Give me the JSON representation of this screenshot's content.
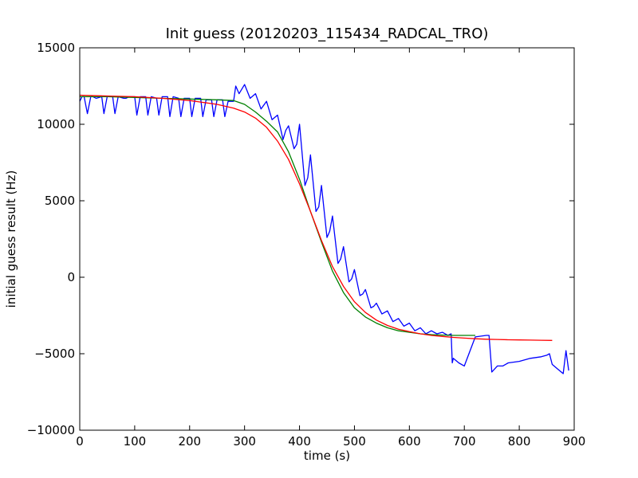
{
  "chart_data": {
    "type": "line",
    "title": "Init guess (20120203_115434_RADCAL_TRO)",
    "xlabel": "time (s)",
    "ylabel": "initial guess result (Hz)",
    "xlim": [
      0,
      900
    ],
    "ylim": [
      -10000,
      15000
    ],
    "xticks": [
      0,
      100,
      200,
      300,
      400,
      500,
      600,
      700,
      800,
      900
    ],
    "yticks": [
      -10000,
      -5000,
      0,
      5000,
      10000,
      15000
    ],
    "xtick_labels": [
      "0",
      "100",
      "200",
      "300",
      "400",
      "500",
      "600",
      "700",
      "800",
      "900"
    ],
    "ytick_labels": [
      "−10000",
      "−5000",
      "0",
      "5000",
      "10000",
      "15000"
    ],
    "grid": false,
    "legend": "none",
    "series": [
      {
        "color": "#0000ff",
        "x": [
          0,
          4,
          8,
          14,
          20,
          24,
          30,
          40,
          44,
          50,
          60,
          64,
          70,
          80,
          84,
          90,
          100,
          104,
          110,
          120,
          124,
          130,
          140,
          144,
          150,
          160,
          164,
          170,
          180,
          184,
          190,
          200,
          204,
          210,
          220,
          224,
          230,
          240,
          244,
          250,
          260,
          264,
          270,
          280,
          284,
          290,
          300,
          310,
          320,
          330,
          340,
          350,
          360,
          370,
          375,
          380,
          390,
          395,
          400,
          410,
          415,
          420,
          430,
          435,
          440,
          450,
          455,
          460,
          470,
          475,
          480,
          490,
          495,
          500,
          510,
          515,
          520,
          530,
          535,
          540,
          550,
          555,
          560,
          570,
          575,
          580,
          590,
          595,
          600,
          610,
          615,
          620,
          630,
          640,
          650,
          660,
          670,
          676,
          678,
          680,
          690,
          700,
          720,
          740,
          745,
          750,
          760,
          770,
          780,
          800,
          820,
          840,
          850,
          855,
          860,
          870,
          880,
          885,
          890
        ],
        "y": [
          11500,
          11800,
          11800,
          10700,
          11800,
          11800,
          11700,
          11800,
          10700,
          11800,
          11800,
          10700,
          11800,
          11700,
          11700,
          11800,
          11800,
          10600,
          11800,
          11800,
          10600,
          11800,
          11700,
          10600,
          11800,
          11800,
          10500,
          11800,
          11700,
          10500,
          11700,
          11700,
          10500,
          11700,
          11700,
          10500,
          11600,
          11600,
          10500,
          11600,
          11600,
          10500,
          11500,
          11500,
          12500,
          12000,
          12600,
          11700,
          12000,
          11000,
          11500,
          10300,
          10600,
          9000,
          9600,
          9900,
          8400,
          8700,
          10000,
          6000,
          6500,
          8000,
          4300,
          4600,
          6000,
          2600,
          3000,
          4000,
          900,
          1200,
          2000,
          -300,
          -100,
          500,
          -1200,
          -1100,
          -800,
          -2000,
          -1900,
          -1700,
          -2400,
          -2300,
          -2200,
          -2900,
          -2800,
          -2700,
          -3200,
          -3100,
          -3000,
          -3500,
          -3400,
          -3300,
          -3700,
          -3500,
          -3700,
          -3600,
          -3800,
          -3700,
          -5600,
          -5300,
          -5600,
          -5800,
          -3900,
          -3800,
          -3800,
          -6200,
          -5800,
          -5800,
          -5600,
          -5500,
          -5300,
          -5200,
          -5100,
          -5000,
          -5700,
          -6000,
          -6300,
          -4800,
          -6100
        ]
      },
      {
        "color": "#008000",
        "x": [
          0,
          50,
          100,
          150,
          200,
          250,
          280,
          300,
          320,
          340,
          360,
          380,
          400,
          420,
          440,
          460,
          480,
          500,
          520,
          540,
          560,
          580,
          600,
          620,
          640,
          660,
          680,
          700,
          720
        ],
        "y": [
          11800,
          11800,
          11750,
          11700,
          11650,
          11600,
          11550,
          11300,
          10800,
          10200,
          9500,
          8200,
          6400,
          4300,
          2300,
          400,
          -1000,
          -2000,
          -2600,
          -3000,
          -3300,
          -3500,
          -3600,
          -3700,
          -3750,
          -3780,
          -3800,
          -3800,
          -3800
        ]
      },
      {
        "color": "#ff0000",
        "x": [
          0,
          50,
          100,
          150,
          200,
          250,
          280,
          300,
          320,
          340,
          360,
          380,
          400,
          420,
          440,
          460,
          480,
          500,
          520,
          540,
          560,
          580,
          600,
          620,
          640,
          660,
          680,
          700,
          720,
          740,
          760,
          780,
          800,
          820,
          840,
          860
        ],
        "y": [
          11900,
          11850,
          11800,
          11700,
          11550,
          11300,
          11050,
          10800,
          10400,
          9800,
          8900,
          7700,
          6100,
          4300,
          2400,
          700,
          -600,
          -1600,
          -2300,
          -2800,
          -3150,
          -3400,
          -3550,
          -3700,
          -3800,
          -3870,
          -3930,
          -3980,
          -4020,
          -4050,
          -4070,
          -4090,
          -4100,
          -4110,
          -4120,
          -4130
        ]
      }
    ]
  }
}
